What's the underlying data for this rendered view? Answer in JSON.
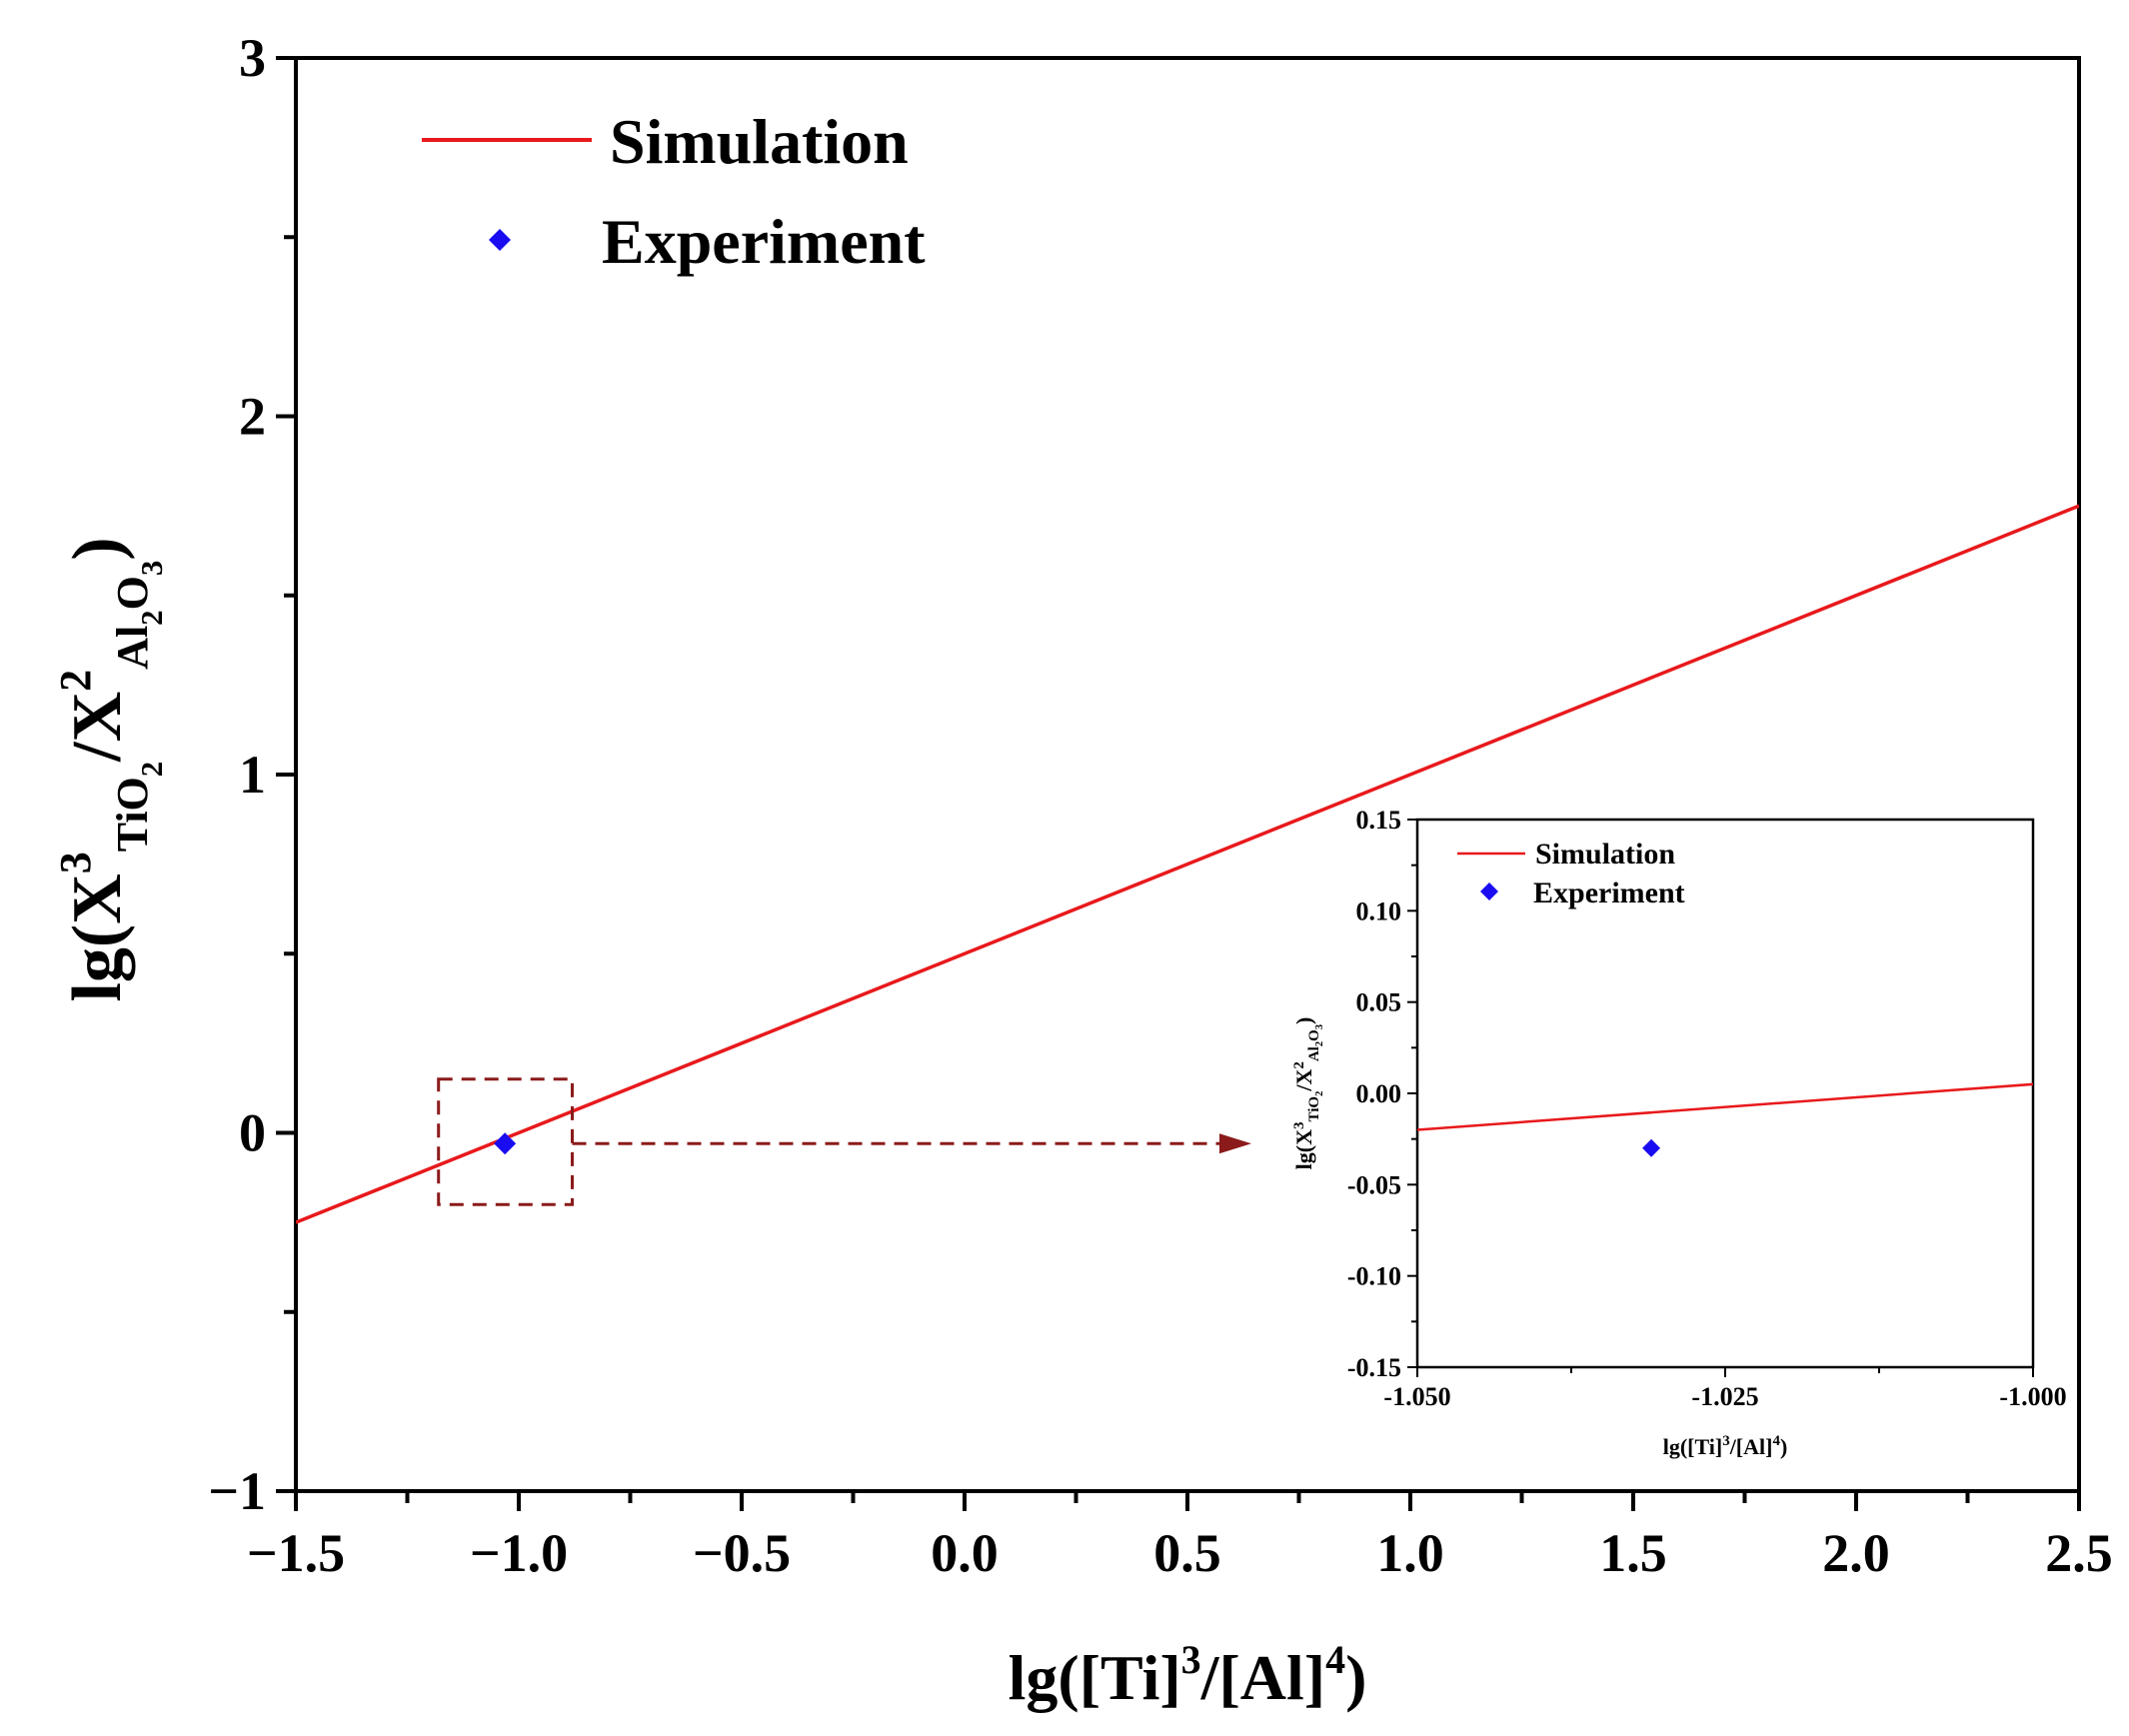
{
  "chart_data": [
    {
      "id": "main",
      "type": "line",
      "xlim": [
        -1.5,
        2.5
      ],
      "ylim": [
        -1,
        3
      ],
      "x_major_ticks": [
        -1.5,
        -1.0,
        -0.5,
        0.0,
        0.5,
        1.0,
        1.5,
        2.0,
        2.5
      ],
      "x_tick_labels": [
        "−1.5",
        "−1.0",
        "−0.5",
        "0.0",
        "0.5",
        "1.0",
        "1.5",
        "2.0",
        "2.5"
      ],
      "y_major_ticks": [
        -1,
        0,
        1,
        2,
        3
      ],
      "y_tick_labels": [
        "−1",
        "0",
        "1",
        "2",
        "3"
      ],
      "xlabel": {
        "main": "lg([Ti]",
        "sup1": "3",
        "mid": "/[Al]",
        "sup2": "4",
        "end": ")"
      },
      "ylabel": {
        "pre": "lg(X",
        "sup1": "3",
        "sub1": "TiO",
        "sub1b": "2",
        "mid": "/X",
        "sup2": "2",
        "sub2": "Al",
        "sub2b": "2",
        "sub2c": "O",
        "sub2d": "3",
        "end": ")"
      },
      "series": [
        {
          "name": "Simulation",
          "kind": "line",
          "color": "#e8191c",
          "x": [
            -1.5,
            2.5
          ],
          "y": [
            -0.25,
            1.75
          ]
        },
        {
          "name": "Experiment",
          "kind": "scatter",
          "marker": "diamond",
          "color": "#1a0cf0",
          "x": [
            -1.031
          ],
          "y": [
            -0.03
          ]
        }
      ],
      "legend": {
        "position": "top-left",
        "entries": [
          "Simulation",
          "Experiment"
        ]
      },
      "annotations": {
        "zoom_box_x": [
          -1.18,
          -0.88
        ],
        "zoom_box_y": [
          -0.2,
          0.15
        ],
        "arrow_color": "#8b1a1a"
      }
    },
    {
      "id": "inset",
      "type": "line",
      "xlim": [
        -1.05,
        -1.0
      ],
      "ylim": [
        -0.15,
        0.15
      ],
      "x_major_ticks": [
        -1.05,
        -1.025,
        -1.0
      ],
      "x_tick_labels": [
        "-1.050",
        "-1.025",
        "-1.000"
      ],
      "y_major_ticks": [
        -0.15,
        -0.1,
        -0.05,
        0.0,
        0.05,
        0.1,
        0.15
      ],
      "y_tick_labels": [
        "-0.15",
        "-0.10",
        "-0.05",
        "0.00",
        "0.05",
        "0.10",
        "0.15"
      ],
      "xlabel": {
        "main": "lg([Ti]",
        "sup1": "3",
        "mid": "/[Al]",
        "sup2": "4",
        "end": ")"
      },
      "ylabel": {
        "pre": "lg(X",
        "sup1": "3",
        "sub1": "TiO",
        "sub1b": "2",
        "mid": "/X",
        "sup2": "2",
        "sub2": "Al",
        "sub2b": "2",
        "sub2c": "O",
        "sub2d": "3",
        "end": ")"
      },
      "series": [
        {
          "name": "Simulation",
          "kind": "line",
          "color": "#e8191c",
          "x": [
            -1.05,
            -1.0
          ],
          "y": [
            -0.02,
            0.005
          ]
        },
        {
          "name": "Experiment",
          "kind": "scatter",
          "marker": "diamond",
          "color": "#1a0cf0",
          "x": [
            -1.031
          ],
          "y": [
            -0.03
          ]
        }
      ],
      "legend": {
        "position": "top-left",
        "entries": [
          "Simulation",
          "Experiment"
        ]
      }
    }
  ]
}
